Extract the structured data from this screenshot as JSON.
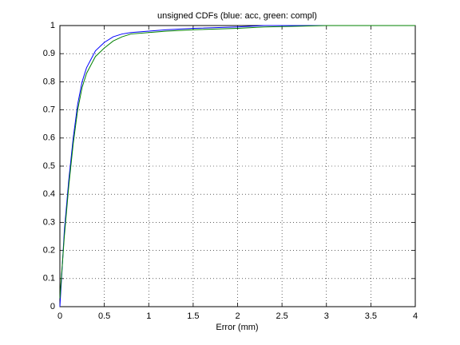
{
  "chart_data": {
    "type": "line",
    "title": "unsigned CDFs (blue: acc, green: compl)",
    "x_label": "Error (mm)",
    "x": [
      0,
      0.05,
      0.1,
      0.15,
      0.2,
      0.25,
      0.3,
      0.35,
      0.4,
      0.5,
      0.6,
      0.7,
      0.8,
      1.0,
      1.2,
      1.5,
      2.0,
      2.3,
      3,
      4
    ],
    "series": [
      {
        "color": "#0000ff",
        "values": [
          0,
          0.27,
          0.45,
          0.6,
          0.72,
          0.8,
          0.85,
          0.88,
          0.91,
          0.94,
          0.96,
          0.97,
          0.975,
          0.98,
          0.985,
          0.99,
          0.995,
          1,
          1,
          1
        ]
      },
      {
        "color": "#008000",
        "values": [
          0.03,
          0.25,
          0.43,
          0.58,
          0.7,
          0.78,
          0.83,
          0.86,
          0.89,
          0.92,
          0.945,
          0.96,
          0.97,
          0.975,
          0.98,
          0.985,
          0.99,
          0.995,
          1,
          1
        ]
      }
    ],
    "xlim": [
      0,
      4
    ],
    "xticks": [
      0,
      0.5,
      1,
      1.5,
      2,
      2.5,
      3,
      3.5,
      4
    ],
    "ylim": [
      0,
      1
    ],
    "yticks": [
      0,
      0.1,
      0.2,
      0.3,
      0.4,
      0.5,
      0.6,
      0.7,
      0.8,
      0.9,
      1
    ],
    "grid": true
  }
}
